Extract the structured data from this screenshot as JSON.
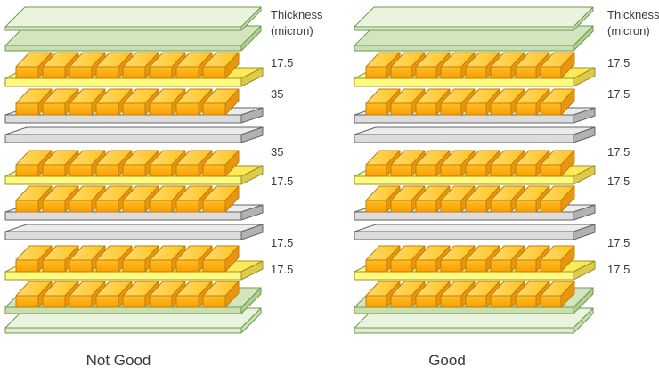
{
  "header": {
    "line1": "Thickness",
    "line2": "(micron)"
  },
  "stacks": [
    {
      "id": "not-good",
      "caption": "Not Good",
      "thickness_labels": [
        "17.5",
        "35",
        "35",
        "17.5",
        "17.5",
        "17.5"
      ]
    },
    {
      "id": "good",
      "caption": "Good",
      "thickness_labels": [
        "17.5",
        "17.5",
        "17.5",
        "17.5",
        "17.5",
        "17.5"
      ]
    }
  ],
  "layers": [
    {
      "name": "cover-plate-top-outer",
      "material": "glass_light",
      "copper": false
    },
    {
      "name": "cover-plate-top-inner",
      "material": "glass_dark",
      "copper": false
    },
    {
      "name": "prepreg-1",
      "material": "prepreg",
      "copper": true
    },
    {
      "name": "core-1-upper",
      "material": "core",
      "copper": true
    },
    {
      "name": "core-1-lower",
      "material": "core",
      "copper": false
    },
    {
      "name": "prepreg-2",
      "material": "prepreg",
      "copper": true
    },
    {
      "name": "core-2-upper",
      "material": "core",
      "copper": true
    },
    {
      "name": "core-2-lower",
      "material": "core",
      "copper": false
    },
    {
      "name": "prepreg-3",
      "material": "prepreg",
      "copper": true
    },
    {
      "name": "cover-plate-bottom-inner",
      "material": "glass_dark",
      "copper": true
    },
    {
      "name": "cover-plate-bottom-outer",
      "material": "glass_light",
      "copper": false
    }
  ],
  "copper_blocks_per_row": 8,
  "colors": {
    "glass_light": {
      "top": "#EAF3DE",
      "front": "#DFECD1",
      "side": "#C9DEB3",
      "line": "#6D9A50"
    },
    "glass_dark": {
      "top": "#D3E5BF",
      "front": "#C9DFAF",
      "side": "#B0CF92",
      "line": "#6D9A50"
    },
    "prepreg": {
      "top1": "#FCFC9C",
      "top2": "#FFE74E",
      "front": "#FDFA80",
      "side": "#DECB49",
      "line": "#9A9130"
    },
    "core": {
      "top": "#ECECEC",
      "front": "#DCDCDC",
      "side": "#B2B2B2",
      "line": "#646464"
    },
    "copper": {
      "top1": "#FFDA6E",
      "top2": "#FFC420",
      "front1": "#FFBE22",
      "front2": "#F79E05",
      "side": "#E8960F",
      "line": "#C47E06"
    },
    "text": "#3A3A3A"
  }
}
